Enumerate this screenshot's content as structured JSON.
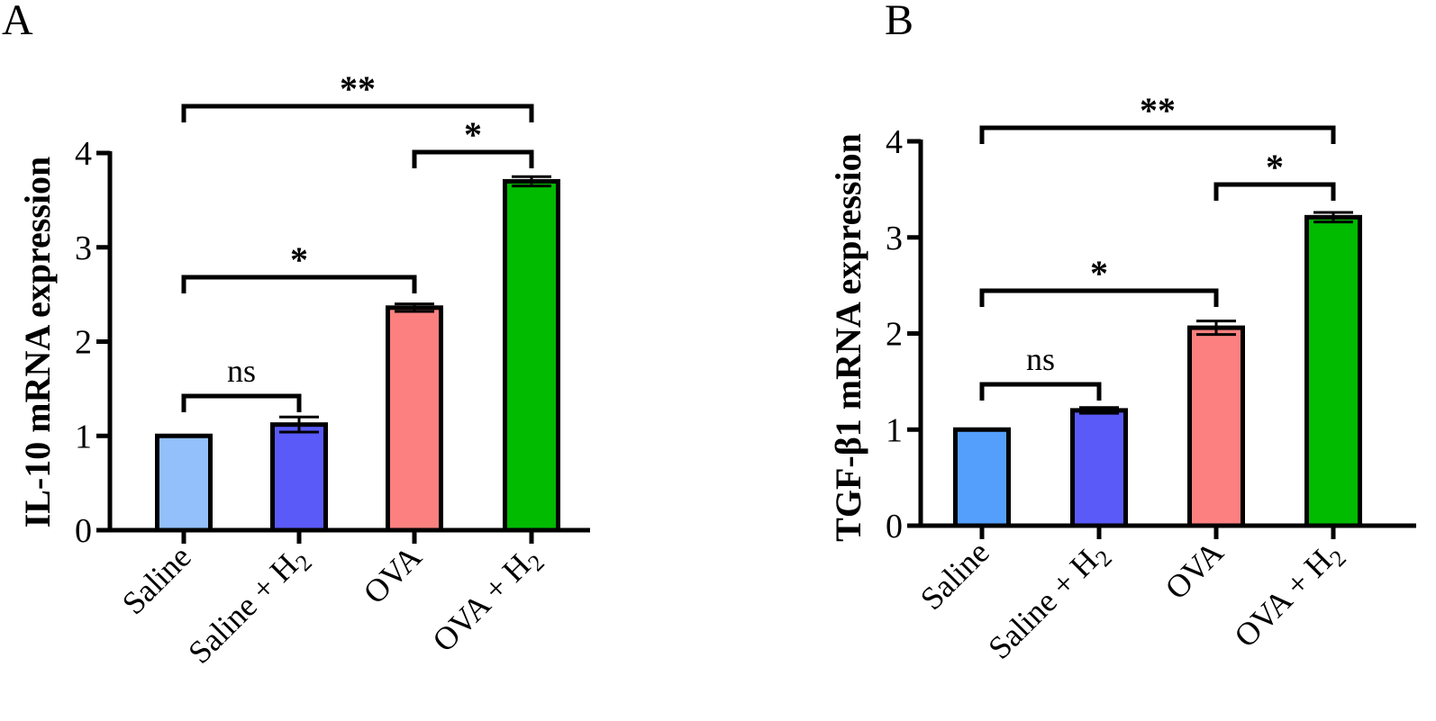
{
  "chart_data": [
    {
      "type": "bar",
      "panel_label": "A",
      "ylabel": "IL-10 mRNA expression",
      "ylim": [
        0,
        4
      ],
      "yticks": [
        0,
        1,
        2,
        3,
        4
      ],
      "categories": [
        {
          "main": "Saline",
          "sub": ""
        },
        {
          "main": "Saline + H",
          "sub": "2"
        },
        {
          "main": "OVA",
          "sub": ""
        },
        {
          "main": "OVA + H",
          "sub": "2"
        }
      ],
      "values": [
        1.0,
        1.12,
        2.36,
        3.7
      ],
      "errors": [
        0,
        0.08,
        0.04,
        0.05
      ],
      "colors": [
        "#93bffa",
        "#5a5af9",
        "#fc8080",
        "#00bb00"
      ],
      "comparisons": [
        {
          "from": 0,
          "to": 1,
          "label": "ns"
        },
        {
          "from": 0,
          "to": 2,
          "label": "*"
        },
        {
          "from": 2,
          "to": 3,
          "label": "*"
        },
        {
          "from": 0,
          "to": 3,
          "label": "**"
        }
      ],
      "grid": false
    },
    {
      "type": "bar",
      "panel_label": "B",
      "ylabel": "TGF-β1 mRNA expression",
      "ylim": [
        0,
        4
      ],
      "yticks": [
        0,
        1,
        2,
        3,
        4
      ],
      "categories": [
        {
          "main": "Saline",
          "sub": ""
        },
        {
          "main": "Saline + H",
          "sub": "2"
        },
        {
          "main": "OVA",
          "sub": ""
        },
        {
          "main": "OVA + H",
          "sub": "2"
        }
      ],
      "values": [
        1.0,
        1.2,
        2.06,
        3.21
      ],
      "errors": [
        0,
        0.03,
        0.07,
        0.05
      ],
      "colors": [
        "#559ffc",
        "#5a5af9",
        "#fc8080",
        "#00bb00"
      ],
      "comparisons": [
        {
          "from": 0,
          "to": 1,
          "label": "ns"
        },
        {
          "from": 0,
          "to": 2,
          "label": "*"
        },
        {
          "from": 2,
          "to": 3,
          "label": "*"
        },
        {
          "from": 0,
          "to": 3,
          "label": "**"
        }
      ],
      "grid": false
    }
  ]
}
